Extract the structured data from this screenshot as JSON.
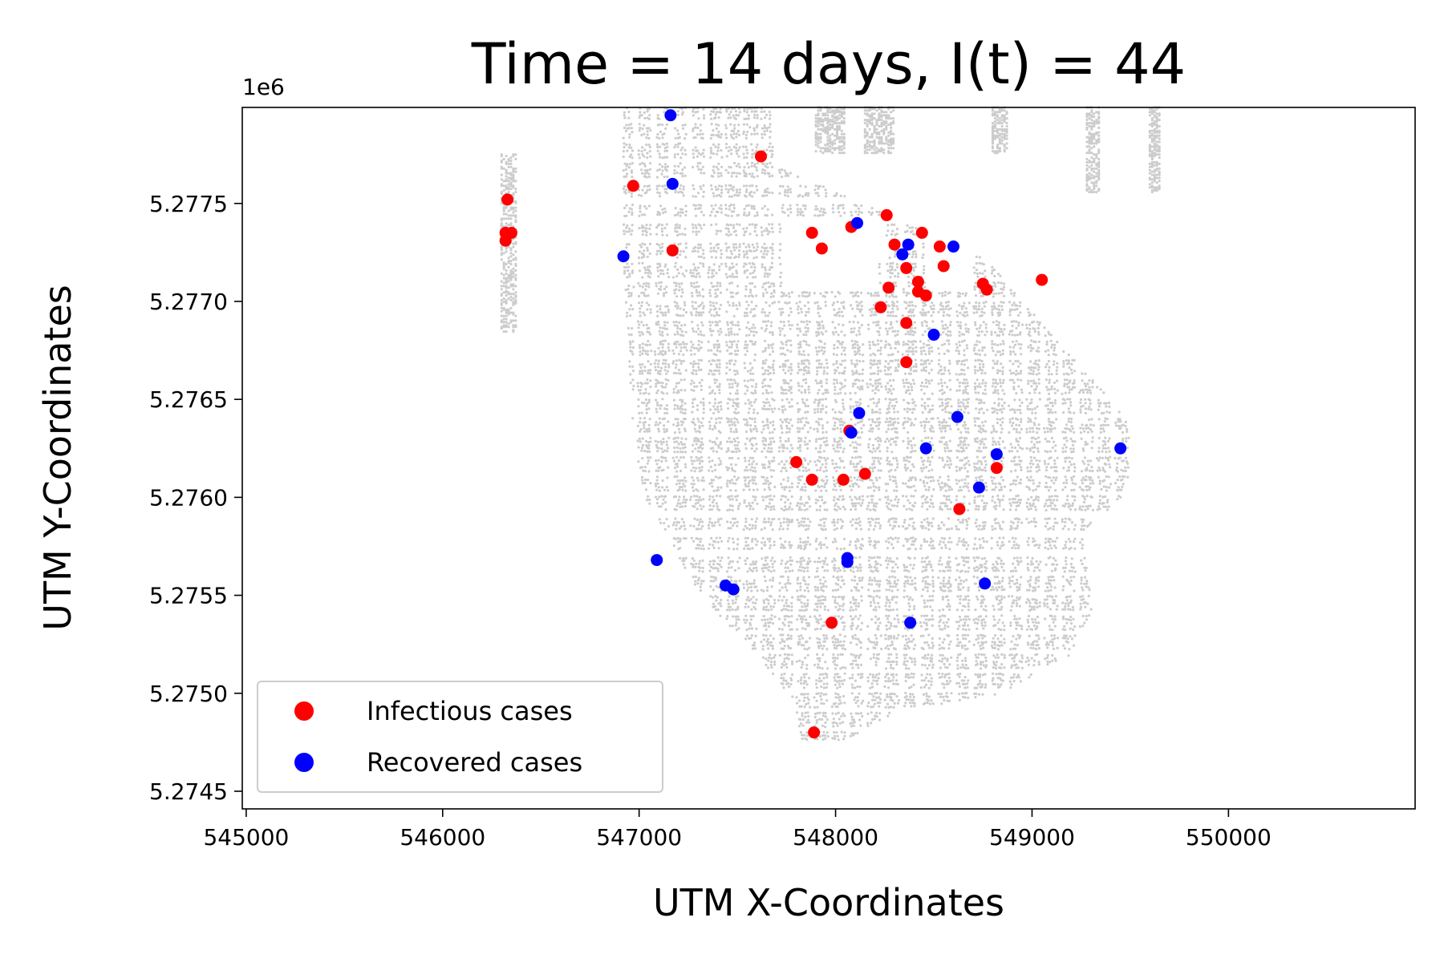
{
  "chart_data": {
    "type": "scatter",
    "title": "Time = 14 days, I(t) = 44",
    "xlabel": "UTM X-Coordinates",
    "ylabel": "UTM Y-Coordinates",
    "y_offset_label": "1e6",
    "xlim": [
      544980,
      550950
    ],
    "ylim": [
      5.27441,
      5.27799
    ],
    "x_ticks": [
      545000,
      546000,
      547000,
      548000,
      549000,
      550000
    ],
    "x_tick_labels": [
      "545000",
      "546000",
      "547000",
      "548000",
      "549000",
      "550000"
    ],
    "y_ticks": [
      5.2745,
      5.275,
      5.2755,
      5.276,
      5.2765,
      5.277,
      5.2775
    ],
    "y_tick_labels": [
      "5.2745",
      "5.2750",
      "5.2755",
      "5.2760",
      "5.2765",
      "5.2770",
      "5.2775"
    ],
    "grid": false,
    "legend_position": "lower-left",
    "background_layer": {
      "name": "building locations",
      "color": "#cccccc",
      "description_note": "dense gray dots forming city street grid"
    },
    "series": [
      {
        "name": "Infectious cases",
        "color": "#ff0000",
        "points": [
          [
            546330,
            5.27752
          ],
          [
            546320,
            5.27735
          ],
          [
            546350,
            5.27735
          ],
          [
            546320,
            5.27731
          ],
          [
            547620,
            5.27774
          ],
          [
            546970,
            5.27759
          ],
          [
            547170,
            5.27726
          ],
          [
            547880,
            5.27735
          ],
          [
            547930,
            5.27727
          ],
          [
            548080,
            5.27738
          ],
          [
            548260,
            5.27744
          ],
          [
            548300,
            5.27729
          ],
          [
            548440,
            5.27735
          ],
          [
            548530,
            5.27728
          ],
          [
            548360,
            5.27717
          ],
          [
            548550,
            5.27718
          ],
          [
            548270,
            5.27707
          ],
          [
            548420,
            5.2771
          ],
          [
            548420,
            5.27705
          ],
          [
            548460,
            5.27703
          ],
          [
            548230,
            5.27697
          ],
          [
            548360,
            5.27689
          ],
          [
            548360,
            5.27669
          ],
          [
            548750,
            5.27709
          ],
          [
            548770,
            5.27706
          ],
          [
            549050,
            5.27711
          ],
          [
            548070,
            5.27634
          ],
          [
            547800,
            5.27618
          ],
          [
            547880,
            5.27609
          ],
          [
            548040,
            5.27609
          ],
          [
            548150,
            5.27612
          ],
          [
            548820,
            5.27615
          ],
          [
            548630,
            5.27594
          ],
          [
            547980,
            5.27536
          ],
          [
            547890,
            5.2748
          ]
        ]
      },
      {
        "name": "Recovered cases",
        "color": "#0000ff",
        "points": [
          [
            547160,
            5.27795
          ],
          [
            547170,
            5.2776
          ],
          [
            546920,
            5.27723
          ],
          [
            548110,
            5.2774
          ],
          [
            548370,
            5.27729
          ],
          [
            548340,
            5.27724
          ],
          [
            548600,
            5.27728
          ],
          [
            548500,
            5.27683
          ],
          [
            548120,
            5.27643
          ],
          [
            548080,
            5.27633
          ],
          [
            548620,
            5.27641
          ],
          [
            548460,
            5.27625
          ],
          [
            548820,
            5.27622
          ],
          [
            549450,
            5.27625
          ],
          [
            548730,
            5.27605
          ],
          [
            547090,
            5.27568
          ],
          [
            548060,
            5.27569
          ],
          [
            548060,
            5.27567
          ],
          [
            547440,
            5.27555
          ],
          [
            547480,
            5.27553
          ],
          [
            548760,
            5.27556
          ],
          [
            548380,
            5.27536
          ]
        ]
      }
    ]
  }
}
